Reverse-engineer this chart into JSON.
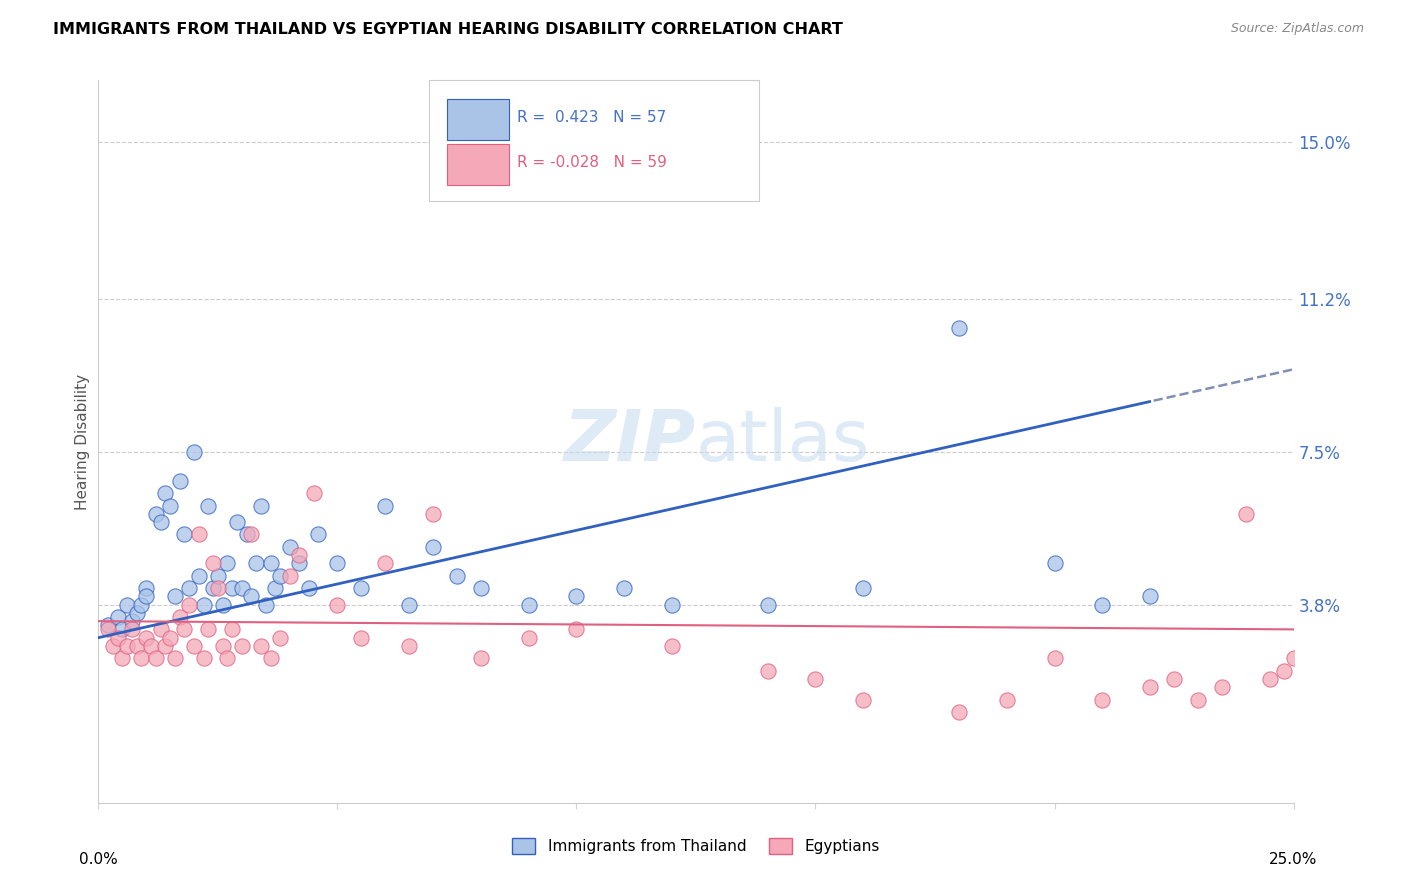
{
  "title": "IMMIGRANTS FROM THAILAND VS EGYPTIAN HEARING DISABILITY CORRELATION CHART",
  "source": "Source: ZipAtlas.com",
  "ylabel": "Hearing Disability",
  "ytick_labels": [
    "3.8%",
    "7.5%",
    "11.2%",
    "15.0%"
  ],
  "ytick_values": [
    0.038,
    0.075,
    0.112,
    0.15
  ],
  "xlim": [
    0.0,
    0.25
  ],
  "ylim": [
    -0.01,
    0.165
  ],
  "legend_r1": "R =  0.423",
  "legend_n1": "N = 57",
  "legend_r2": "R = -0.028",
  "legend_n2": "N = 59",
  "thailand_color": "#aac4e8",
  "egypt_color": "#f4a8b8",
  "thailand_line_color": "#3060c0",
  "egypt_line_color": "#e06080",
  "thailand_line_y0": 0.03,
  "thailand_line_y1": 0.095,
  "egypt_line_y0": 0.034,
  "egypt_line_y1": 0.032,
  "thailand_scatter_x": [
    0.002,
    0.004,
    0.005,
    0.006,
    0.007,
    0.008,
    0.009,
    0.01,
    0.01,
    0.012,
    0.013,
    0.014,
    0.015,
    0.016,
    0.017,
    0.018,
    0.019,
    0.02,
    0.021,
    0.022,
    0.023,
    0.024,
    0.025,
    0.026,
    0.027,
    0.028,
    0.029,
    0.03,
    0.031,
    0.032,
    0.033,
    0.034,
    0.035,
    0.036,
    0.037,
    0.038,
    0.04,
    0.042,
    0.044,
    0.046,
    0.05,
    0.055,
    0.06,
    0.065,
    0.07,
    0.075,
    0.08,
    0.09,
    0.1,
    0.11,
    0.12,
    0.14,
    0.16,
    0.18,
    0.2,
    0.21,
    0.22
  ],
  "thailand_scatter_y": [
    0.033,
    0.035,
    0.032,
    0.038,
    0.034,
    0.036,
    0.038,
    0.042,
    0.04,
    0.06,
    0.058,
    0.065,
    0.062,
    0.04,
    0.068,
    0.055,
    0.042,
    0.075,
    0.045,
    0.038,
    0.062,
    0.042,
    0.045,
    0.038,
    0.048,
    0.042,
    0.058,
    0.042,
    0.055,
    0.04,
    0.048,
    0.062,
    0.038,
    0.048,
    0.042,
    0.045,
    0.052,
    0.048,
    0.042,
    0.055,
    0.048,
    0.042,
    0.062,
    0.038,
    0.052,
    0.045,
    0.042,
    0.038,
    0.04,
    0.042,
    0.038,
    0.038,
    0.042,
    0.105,
    0.048,
    0.038,
    0.04
  ],
  "egypt_scatter_x": [
    0.002,
    0.003,
    0.004,
    0.005,
    0.006,
    0.007,
    0.008,
    0.009,
    0.01,
    0.011,
    0.012,
    0.013,
    0.014,
    0.015,
    0.016,
    0.017,
    0.018,
    0.019,
    0.02,
    0.021,
    0.022,
    0.023,
    0.024,
    0.025,
    0.026,
    0.027,
    0.028,
    0.03,
    0.032,
    0.034,
    0.036,
    0.038,
    0.04,
    0.042,
    0.045,
    0.05,
    0.055,
    0.06,
    0.065,
    0.07,
    0.08,
    0.09,
    0.1,
    0.12,
    0.14,
    0.15,
    0.16,
    0.18,
    0.19,
    0.2,
    0.21,
    0.22,
    0.225,
    0.23,
    0.235,
    0.24,
    0.245,
    0.248,
    0.25
  ],
  "egypt_scatter_y": [
    0.032,
    0.028,
    0.03,
    0.025,
    0.028,
    0.032,
    0.028,
    0.025,
    0.03,
    0.028,
    0.025,
    0.032,
    0.028,
    0.03,
    0.025,
    0.035,
    0.032,
    0.038,
    0.028,
    0.055,
    0.025,
    0.032,
    0.048,
    0.042,
    0.028,
    0.025,
    0.032,
    0.028,
    0.055,
    0.028,
    0.025,
    0.03,
    0.045,
    0.05,
    0.065,
    0.038,
    0.03,
    0.048,
    0.028,
    0.06,
    0.025,
    0.03,
    0.032,
    0.028,
    0.022,
    0.02,
    0.015,
    0.012,
    0.015,
    0.025,
    0.015,
    0.018,
    0.02,
    0.015,
    0.018,
    0.06,
    0.02,
    0.022,
    0.025
  ]
}
